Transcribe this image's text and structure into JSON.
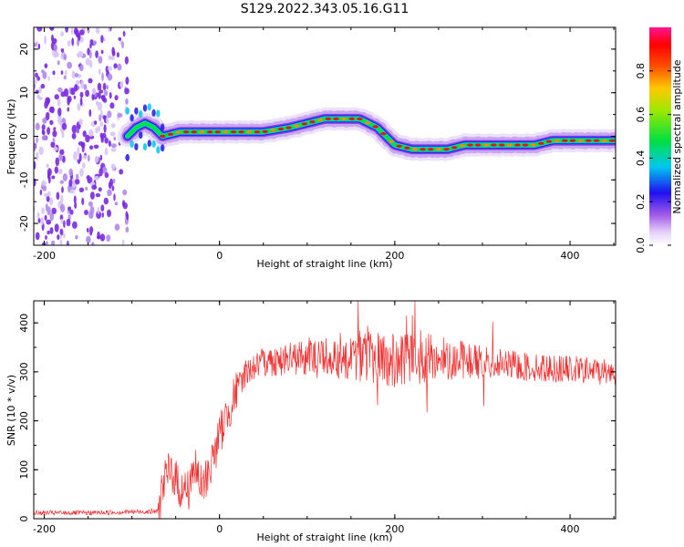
{
  "title": "S129.2022.343.05.16.G11",
  "chart_data": [
    {
      "type": "heatmap",
      "xlabel": "Height of straight line (km)",
      "ylabel": "Frequency (Hz)",
      "xlim": [
        -212,
        452
      ],
      "ylim": [
        -25,
        25
      ],
      "x_ticks": [
        -200,
        0,
        200,
        400
      ],
      "y_ticks": [
        -20,
        -10,
        0,
        10,
        20
      ],
      "colorbar": {
        "label": "Normalized spectral amplitude",
        "range": [
          0,
          1
        ],
        "ticks": [
          0.0,
          0.2,
          0.4,
          0.6,
          0.8
        ],
        "tick_labels": [
          "0.0",
          "0.2",
          "0.4",
          "0.6",
          "0.8"
        ],
        "colors": [
          "#ffffff",
          "#c79cf2",
          "#7a1fe0",
          "#1a10f0",
          "#00d8f0",
          "#00e030",
          "#d8e000",
          "#ff8000",
          "#ff0000",
          "#ff1493"
        ]
      },
      "signal_ridge": {
        "x": [
          -105,
          -95,
          -85,
          -75,
          -65,
          -55,
          -45,
          -35,
          -20,
          0,
          20,
          50,
          80,
          100,
          120,
          140,
          160,
          180,
          200,
          220,
          240,
          260,
          280,
          300,
          320,
          340,
          360,
          380,
          400,
          420,
          452
        ],
        "frequency": [
          0,
          2,
          3,
          2,
          0,
          0.5,
          1,
          1,
          1,
          1,
          1,
          1,
          2,
          3,
          4,
          4,
          4,
          2,
          -2,
          -3,
          -3,
          -3,
          -2,
          -2,
          -2,
          -2,
          -2,
          -1,
          -1,
          -1,
          -1
        ]
      }
    },
    {
      "type": "line",
      "xlabel": "Height of straight line (km)",
      "ylabel": "SNR (10 * v/v)",
      "xlim": [
        -212,
        452
      ],
      "ylim": [
        0,
        445
      ],
      "x_ticks": [
        -200,
        0,
        200,
        400
      ],
      "y_ticks": [
        0,
        100,
        200,
        300,
        400
      ],
      "line_color": "#f03030",
      "series": [
        {
          "x": [
            -212,
            -150,
            -100,
            -70,
            -65,
            -55,
            -45,
            -35,
            -30,
            -20,
            -10,
            0,
            10,
            20,
            30,
            50,
            100,
            150,
            200,
            250,
            300,
            350,
            400,
            452
          ],
          "snr": [
            12,
            12,
            14,
            15,
            70,
            100,
            60,
            60,
            110,
            60,
            110,
            170,
            220,
            265,
            300,
            320,
            330,
            335,
            320,
            330,
            320,
            310,
            305,
            300
          ]
        }
      ]
    }
  ]
}
